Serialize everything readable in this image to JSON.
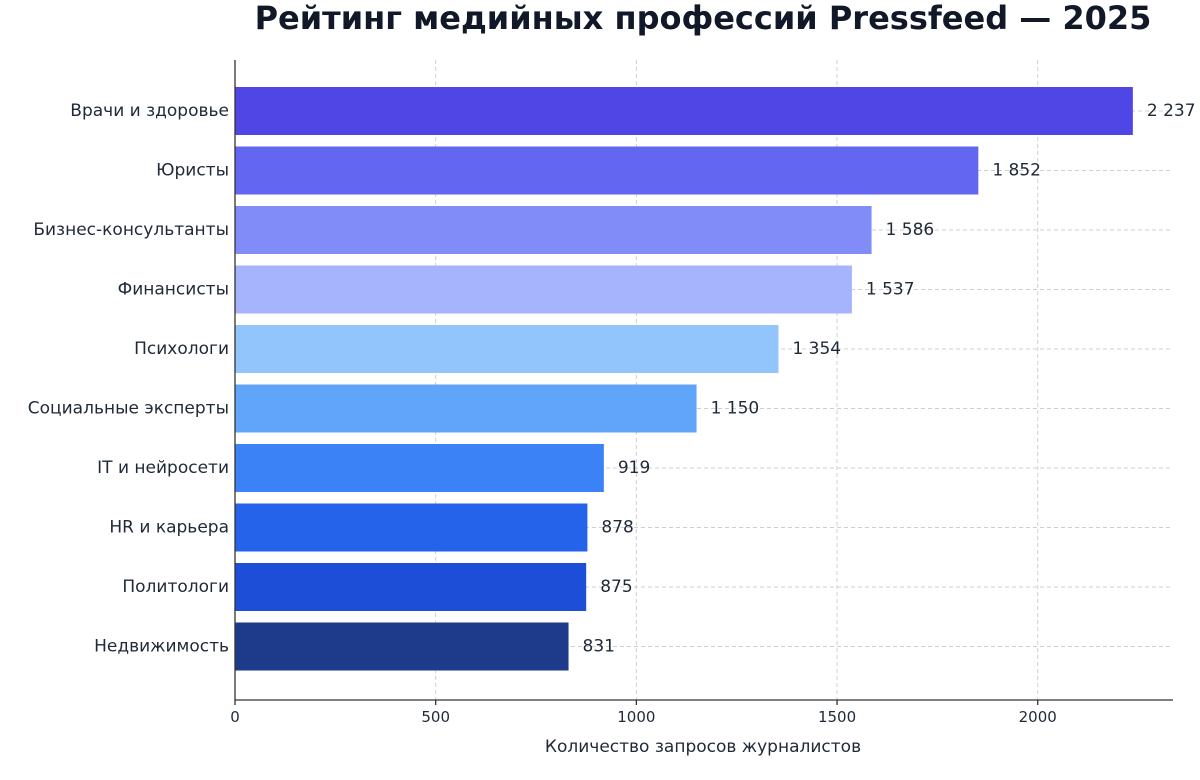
{
  "chart_data": {
    "type": "bar",
    "orientation": "horizontal",
    "title": "Рейтинг медийных профессий Pressfeed — 2025",
    "xlabel": "Количество запросов журналистов",
    "ylabel": "",
    "categories": [
      "Врачи и здоровье",
      "Юристы",
      "Бизнес-консультанты",
      "Финансисты",
      "Психологи",
      "Социальные эксперты",
      "IT и нейросети",
      "HR и карьера",
      "Политологи",
      "Недвижимость"
    ],
    "values": [
      2237,
      1852,
      1586,
      1537,
      1354,
      1150,
      919,
      878,
      875,
      831
    ],
    "value_labels": [
      "2 237",
      "1 852",
      "1 586",
      "1 537",
      "1 354",
      "1 150",
      "919",
      "878",
      "875",
      "831"
    ],
    "colors": [
      "#4f46e5",
      "#6366f1",
      "#818cf8",
      "#a5b4fc",
      "#93c5fd",
      "#60a5fa",
      "#3b82f6",
      "#2563eb",
      "#1d4ed8",
      "#1e3a8a"
    ],
    "xlim": [
      0,
      2337
    ],
    "xticks": [
      0,
      500,
      1000,
      1500,
      2000
    ],
    "grid": true,
    "legend": "none"
  }
}
